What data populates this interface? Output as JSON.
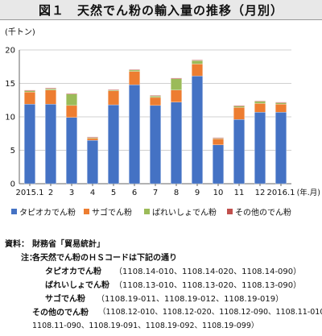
{
  "title": "図１　天然でん粉の輸入量の推移（月別）",
  "chart_data": {
    "type": "bar",
    "stacked": true,
    "unit_label": "(千トン)",
    "x_unit_label": "(年.月)",
    "categories": [
      "2015.1",
      "2",
      "3",
      "4",
      "5",
      "6",
      "7",
      "8",
      "9",
      "10",
      "11",
      "12",
      "2016.1"
    ],
    "ylim": [
      0,
      20
    ],
    "yticks": [
      0,
      5,
      10,
      15,
      20
    ],
    "grid": true,
    "legend_position": "bottom",
    "series": [
      {
        "name": "タピオカでん粉",
        "color": "#4472c4",
        "values": [
          11.9,
          11.9,
          9.9,
          6.5,
          11.8,
          14.8,
          11.7,
          12.2,
          16.1,
          5.8,
          9.6,
          10.7,
          10.7
        ]
      },
      {
        "name": "サゴでん粉",
        "color": "#ed7d31",
        "values": [
          1.8,
          2.1,
          1.8,
          0.3,
          2.1,
          2.0,
          1.2,
          1.8,
          1.8,
          0.9,
          1.8,
          1.3,
          1.2
        ]
      },
      {
        "name": "ばれいしょでん粉",
        "color": "#9bbb59",
        "values": [
          0.2,
          0.2,
          1.7,
          0.1,
          0.1,
          0.2,
          0.2,
          1.7,
          0.5,
          0.1,
          0.2,
          0.3,
          0.2
        ]
      },
      {
        "name": "その他のでん粉",
        "color": "#c0504d",
        "values": [
          0.1,
          0.1,
          0.1,
          0.1,
          0.1,
          0.1,
          0.1,
          0.1,
          0.1,
          0.1,
          0.1,
          0.1,
          0.1
        ]
      }
    ]
  },
  "notes": {
    "source_label": "資料：",
    "source_text": "財務省「貿易統計」",
    "note_label": "注：",
    "note_intro": "各天然でん粉のＨＳコードは下記の通り",
    "codes": [
      {
        "name": "タピオカでん粉",
        "codes": "（1108.14-010、1108.14-020、1108.14-090）"
      },
      {
        "name": "ばれいしょでん粉",
        "codes": "（1108.13-010、1108.13-020、1108.13-090）"
      },
      {
        "name": "サゴでん粉",
        "codes": "（1108.19-011、1108.19-012、1108.19-019）"
      },
      {
        "name": "その他のでん粉",
        "codes": "（1108.12-010、1108.12-020、1108.12-090、1108.11-010、"
      }
    ],
    "codes_cont": "1108.11-090、1108.19-091、1108.19-092、1108.19-099）"
  }
}
